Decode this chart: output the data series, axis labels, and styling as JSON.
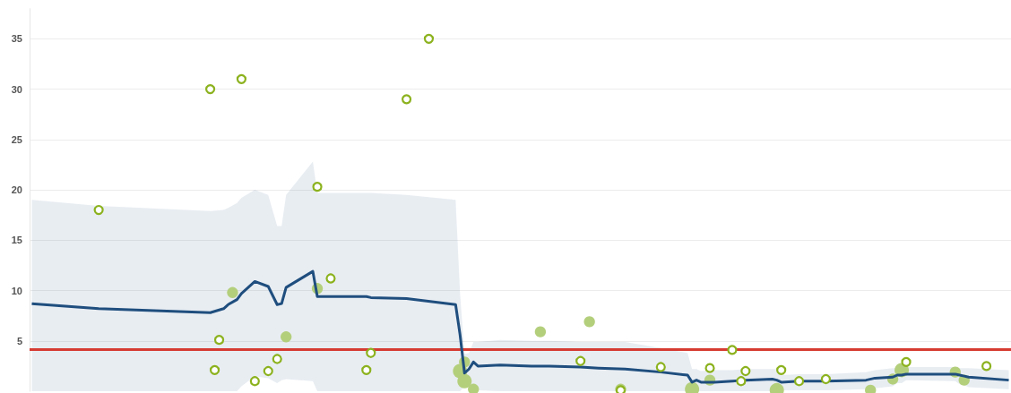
{
  "chart_data": {
    "type": "line",
    "ylim": [
      0,
      38
    ],
    "yticks": [
      5,
      10,
      15,
      20,
      25,
      30,
      35
    ],
    "grid": "y",
    "tick_labels": "y",
    "categories": [
      null,
      null,
      null,
      null,
      null,
      null,
      null,
      null,
      null,
      null,
      null,
      null,
      null,
      null,
      null,
      null,
      null,
      null,
      null,
      null,
      null,
      null,
      null,
      null,
      null,
      null,
      null,
      null,
      null,
      null,
      null,
      null,
      null,
      null,
      null,
      null,
      null,
      null,
      null,
      null,
      null,
      null,
      null,
      null,
      null,
      null,
      null,
      null,
      null,
      null,
      null,
      null,
      null,
      null,
      null,
      null,
      null,
      null,
      null,
      null,
      null,
      null,
      null,
      null,
      null,
      null,
      null,
      null,
      null,
      null,
      null,
      null,
      null,
      null,
      null,
      null,
      null,
      null,
      null,
      null,
      null,
      null,
      null,
      null,
      null,
      null,
      null,
      null,
      null,
      null,
      null,
      null,
      null,
      null,
      null,
      null,
      null,
      null,
      null,
      null,
      null,
      null,
      null,
      null,
      null,
      null,
      null,
      null,
      null,
      null,
      null,
      null,
      null,
      null,
      null,
      null,
      null,
      null,
      null,
      null,
      null,
      null,
      null,
      null,
      null,
      null,
      null,
      null,
      null,
      null,
      null,
      null,
      null,
      null,
      null,
      null,
      null,
      null,
      null,
      null,
      null,
      null,
      null,
      null,
      null,
      null,
      null,
      null,
      null,
      null,
      null,
      null,
      null,
      null,
      null,
      null,
      null,
      null,
      null,
      null,
      null,
      null,
      null,
      null,
      null,
      null,
      null,
      null,
      null,
      null,
      null,
      null,
      null,
      null,
      null,
      null,
      null,
      null,
      null,
      null,
      null,
      null,
      null,
      null,
      null,
      null,
      null,
      null,
      null,
      null,
      null,
      null,
      null,
      null,
      null,
      null,
      null,
      null,
      null,
      null,
      null,
      null,
      null,
      null,
      null,
      null,
      null,
      null,
      null,
      null,
      null,
      null,
      null,
      null,
      null,
      null,
      null,
      null,
      null,
      null
    ],
    "series": [
      {
        "color": "#1f4e7e",
        "values": [
          8.7,
          null,
          null,
          null,
          null,
          null,
          null,
          null,
          null,
          null,
          null,
          null,
          null,
          null,
          null,
          8.2,
          null,
          null,
          null,
          null,
          null,
          null,
          null,
          null,
          null,
          null,
          null,
          null,
          null,
          null,
          null,
          null,
          null,
          null,
          null,
          null,
          null,
          null,
          null,
          null,
          7.8,
          null,
          null,
          8.2,
          8.6,
          null,
          9.1,
          9.7,
          null,
          null,
          10.9,
          null,
          null,
          10.4,
          null,
          8.6,
          8.7,
          10.3,
          null,
          null,
          null,
          null,
          null,
          11.9,
          9.4,
          null,
          null,
          null,
          null,
          null,
          null,
          null,
          null,
          null,
          null,
          9.4,
          9.3,
          null,
          null,
          null,
          null,
          null,
          null,
          null,
          9.2,
          null,
          null,
          null,
          null,
          null,
          null,
          null,
          null,
          null,
          null,
          8.6,
          5.6,
          1.8,
          2.2,
          2.9,
          2.5,
          null,
          null,
          null,
          null,
          2.6,
          null,
          null,
          null,
          null,
          null,
          null,
          2.5,
          null,
          null,
          null,
          2.5,
          null,
          null,
          null,
          null,
          null,
          null,
          2.4,
          null,
          null,
          null,
          2.3,
          null,
          null,
          null,
          null,
          null,
          2.2,
          null,
          null,
          null,
          null,
          null,
          null,
          null,
          1.9,
          null,
          null,
          null,
          null,
          null,
          1.6,
          0.9,
          1.1,
          0.9,
          null,
          null,
          0.9,
          null,
          null,
          null,
          1.0,
          null,
          null,
          1.1,
          null,
          null,
          null,
          null,
          null,
          1.2,
          1.1,
          0.9,
          null,
          null,
          null,
          1.0,
          null,
          null,
          null,
          null,
          null,
          1.0,
          null,
          null,
          null,
          null,
          null,
          null,
          null,
          null,
          1.1,
          null,
          1.3,
          null,
          null,
          null,
          1.4,
          1.6,
          1.6,
          1.7,
          null,
          null,
          null,
          null,
          null,
          null,
          null,
          null,
          null,
          null,
          1.7,
          1.6,
          1.5,
          1.4,
          null,
          null,
          null,
          null,
          null,
          null,
          null,
          null,
          1.1
        ],
        "upper": [
          19.0,
          null,
          null,
          null,
          null,
          null,
          null,
          null,
          null,
          null,
          null,
          null,
          null,
          null,
          null,
          18.4,
          null,
          null,
          null,
          null,
          null,
          null,
          null,
          null,
          null,
          null,
          null,
          null,
          null,
          null,
          null,
          null,
          null,
          null,
          null,
          null,
          null,
          null,
          null,
          null,
          17.9,
          null,
          null,
          18.0,
          18.2,
          null,
          18.7,
          19.2,
          null,
          null,
          20.0,
          null,
          null,
          19.5,
          null,
          16.4,
          16.4,
          19.5,
          null,
          null,
          null,
          null,
          null,
          22.8,
          19.7,
          null,
          null,
          null,
          null,
          null,
          null,
          null,
          null,
          null,
          null,
          19.7,
          19.7,
          null,
          null,
          null,
          null,
          null,
          null,
          null,
          19.5,
          null,
          null,
          null,
          null,
          null,
          null,
          null,
          null,
          null,
          null,
          19.0,
          9.7,
          3.7,
          3.8,
          4.9,
          4.9,
          null,
          null,
          null,
          null,
          5.1,
          null,
          null,
          null,
          null,
          null,
          null,
          5.0,
          null,
          null,
          null,
          5.0,
          null,
          null,
          null,
          null,
          null,
          null,
          4.9,
          null,
          null,
          null,
          4.9,
          null,
          null,
          null,
          null,
          null,
          4.9,
          null,
          null,
          null,
          null,
          null,
          null,
          null,
          4.3,
          null,
          null,
          null,
          null,
          null,
          3.8,
          2.2,
          2.2,
          2.0,
          null,
          null,
          2.1,
          null,
          null,
          null,
          2.1,
          null,
          null,
          2.2,
          null,
          null,
          null,
          null,
          null,
          2.2,
          2.2,
          1.6,
          null,
          null,
          null,
          1.7,
          null,
          null,
          null,
          null,
          null,
          1.7,
          null,
          null,
          null,
          null,
          null,
          null,
          null,
          null,
          1.9,
          null,
          2.1,
          null,
          null,
          null,
          2.3,
          2.3,
          2.4,
          2.4,
          null,
          null,
          null,
          null,
          null,
          null,
          null,
          null,
          null,
          null,
          2.4,
          2.3,
          2.3,
          2.3,
          null,
          null,
          null,
          null,
          null,
          null,
          null,
          null,
          2.1
        ],
        "lower": [
          0,
          null,
          null,
          null,
          null,
          null,
          null,
          null,
          null,
          null,
          null,
          null,
          null,
          null,
          null,
          0,
          null,
          null,
          null,
          null,
          null,
          null,
          null,
          null,
          null,
          null,
          null,
          null,
          null,
          null,
          null,
          null,
          null,
          null,
          null,
          null,
          null,
          null,
          null,
          null,
          0,
          null,
          null,
          0,
          0,
          null,
          0,
          0.5,
          null,
          null,
          1.5,
          null,
          null,
          1.3,
          null,
          0.8,
          1.1,
          1.2,
          null,
          null,
          null,
          null,
          null,
          1.0,
          0,
          null,
          null,
          null,
          null,
          null,
          null,
          null,
          null,
          null,
          null,
          0,
          0,
          null,
          null,
          null,
          null,
          null,
          null,
          null,
          0,
          null,
          null,
          null,
          null,
          null,
          null,
          null,
          null,
          null,
          null,
          0,
          0,
          0.5,
          0.5,
          0.6,
          0.1,
          null,
          null,
          null,
          null,
          0,
          null,
          null,
          null,
          null,
          null,
          null,
          0,
          null,
          null,
          null,
          0,
          null,
          null,
          null,
          null,
          null,
          null,
          0,
          null,
          null,
          null,
          0,
          null,
          null,
          null,
          null,
          null,
          0,
          null,
          null,
          null,
          null,
          null,
          null,
          null,
          0,
          null,
          null,
          null,
          null,
          null,
          0,
          0,
          0,
          0,
          null,
          null,
          0,
          null,
          null,
          null,
          0,
          null,
          null,
          0,
          null,
          null,
          null,
          null,
          null,
          0,
          0,
          0.1,
          null,
          null,
          null,
          0.1,
          null,
          null,
          null,
          null,
          null,
          0.1,
          null,
          null,
          null,
          null,
          null,
          null,
          null,
          null,
          0.2,
          null,
          0.3,
          null,
          null,
          null,
          0.5,
          0.8,
          0.8,
          1.1,
          null,
          null,
          null,
          null,
          null,
          null,
          null,
          null,
          null,
          null,
          1.0,
          0.7,
          0.6,
          0.4,
          null,
          null,
          null,
          null,
          null,
          null,
          null,
          null,
          0.2
        ]
      },
      {
        "type": "scatter",
        "marker": "circle",
        "color": "#8cb21e",
        "values": [
          null,
          null,
          null,
          null,
          null,
          null,
          null,
          null,
          null,
          null,
          null,
          null,
          null,
          null,
          null,
          18,
          null,
          null,
          null,
          null,
          null,
          null,
          null,
          null,
          null,
          null,
          null,
          null,
          null,
          null,
          null,
          null,
          null,
          null,
          null,
          null,
          null,
          null,
          null,
          null,
          30,
          2.1,
          5.1,
          null,
          null,
          null,
          null,
          31,
          null,
          null,
          1.0,
          null,
          null,
          2.0,
          null,
          3.2,
          null,
          null,
          null,
          null,
          null,
          null,
          null,
          null,
          20.3,
          null,
          null,
          11.2,
          null,
          null,
          null,
          null,
          null,
          null,
          null,
          2.1,
          3.8,
          null,
          null,
          null,
          null,
          null,
          null,
          null,
          29,
          null,
          null,
          null,
          null,
          35,
          null,
          null,
          null,
          null,
          null,
          null,
          null,
          null,
          null,
          null,
          null,
          null,
          null,
          null,
          null,
          null,
          null,
          null,
          null,
          null,
          null,
          null,
          null,
          null,
          null,
          null,
          null,
          null,
          null,
          null,
          null,
          null,
          null,
          3.0,
          null,
          null,
          null,
          null,
          null,
          null,
          null,
          null,
          0.1,
          null,
          null,
          null,
          null,
          null,
          null,
          null,
          null,
          2.4,
          null,
          null,
          null,
          null,
          null,
          null,
          null,
          null,
          null,
          null,
          2.3,
          null,
          null,
          null,
          null,
          4.1,
          null,
          1.0,
          2.0,
          null,
          null,
          null,
          null,
          null,
          null,
          null,
          2.1,
          null,
          null,
          null,
          1.0,
          null,
          null,
          null,
          null,
          null,
          1.2,
          null,
          null,
          null,
          null,
          null,
          null,
          null,
          null,
          null,
          null,
          null,
          null,
          null,
          null,
          null,
          null,
          null,
          2.9,
          null,
          null,
          null,
          null,
          null,
          null,
          null,
          null,
          null,
          null,
          null,
          null,
          null,
          null,
          null,
          null,
          null,
          2.5,
          null,
          null,
          null,
          null,
          null
        ]
      },
      {
        "type": "bubble",
        "color": "#b4cf7c",
        "values": [
          null,
          null,
          null,
          null,
          null,
          null,
          null,
          null,
          null,
          null,
          null,
          null,
          null,
          null,
          null,
          null,
          null,
          null,
          null,
          null,
          null,
          null,
          null,
          null,
          null,
          null,
          null,
          null,
          null,
          null,
          null,
          null,
          null,
          null,
          null,
          null,
          null,
          null,
          null,
          null,
          null,
          null,
          null,
          null,
          null,
          9.8,
          null,
          null,
          null,
          null,
          null,
          null,
          null,
          null,
          null,
          null,
          null,
          5.4,
          null,
          null,
          null,
          null,
          null,
          null,
          10.2,
          null,
          null,
          null,
          null,
          null,
          null,
          null,
          null,
          null,
          null,
          null,
          null,
          null,
          null,
          null,
          null,
          null,
          null,
          null,
          null,
          null,
          null,
          null,
          null,
          null,
          null,
          null,
          null,
          null,
          null,
          null,
          2.0,
          2.9,
          null,
          0.2,
          null,
          null,
          null,
          null,
          null,
          null,
          null,
          null,
          null,
          null,
          null,
          null,
          null,
          null,
          5.9,
          null,
          null,
          null,
          null,
          null,
          null,
          null,
          null,
          null,
          null,
          6.9,
          null,
          null,
          null,
          null,
          null,
          null,
          0.2,
          null,
          null,
          null,
          null,
          null,
          null,
          null,
          null,
          null,
          null,
          null,
          null,
          null,
          null,
          null,
          0.2,
          null,
          null,
          null,
          1.1,
          null,
          null,
          null,
          null,
          null,
          null,
          null,
          null,
          null,
          null,
          null,
          null,
          null,
          null,
          0.1,
          null,
          null,
          null,
          null,
          null,
          null,
          null,
          null,
          null,
          null,
          null,
          null,
          null,
          null,
          null,
          null,
          null,
          null,
          null,
          null,
          0.1,
          null,
          null,
          null,
          null,
          1.2,
          null,
          2.1,
          null,
          null,
          null,
          null,
          null,
          null,
          null,
          null,
          null,
          null,
          null,
          1.9,
          null,
          1.1,
          null,
          null,
          null,
          null,
          null,
          null,
          null,
          null,
          null,
          null
        ],
        "sizes": [
          null,
          null,
          null,
          null,
          null,
          null,
          null,
          null,
          null,
          null,
          null,
          null,
          null,
          null,
          null,
          null,
          null,
          null,
          null,
          null,
          null,
          null,
          null,
          null,
          null,
          null,
          null,
          null,
          null,
          null,
          null,
          null,
          null,
          null,
          null,
          null,
          null,
          null,
          null,
          null,
          null,
          null,
          null,
          null,
          null,
          0.6,
          null,
          null,
          null,
          null,
          null,
          null,
          null,
          null,
          null,
          null,
          null,
          0.6,
          null,
          null,
          null,
          null,
          null,
          null,
          0.6,
          null,
          null,
          null,
          null,
          null,
          null,
          null,
          null,
          null,
          null,
          null,
          null,
          null,
          null,
          null,
          null,
          null,
          null,
          null,
          null,
          null,
          null,
          null,
          null,
          null,
          null,
          null,
          null,
          null,
          null,
          null,
          1,
          0.6,
          null,
          0.6,
          null,
          null,
          null,
          null,
          null,
          null,
          null,
          null,
          null,
          null,
          null,
          null,
          null,
          null,
          0.6,
          null,
          null,
          null,
          null,
          null,
          null,
          null,
          null,
          null,
          null,
          0.6,
          null,
          null,
          null,
          null,
          null,
          null,
          0.6,
          null,
          null,
          null,
          null,
          null,
          null,
          null,
          null,
          null,
          null,
          null,
          null,
          null,
          null,
          null,
          1,
          null,
          null,
          null,
          0.6,
          null,
          null,
          null,
          null,
          null,
          null,
          null,
          null,
          null,
          null,
          null,
          null,
          null,
          null,
          1,
          null,
          null,
          null,
          null,
          null,
          null,
          null,
          null,
          null,
          null,
          null,
          null,
          null,
          null,
          null,
          null,
          null,
          null,
          null,
          null,
          0.6,
          null,
          null,
          null,
          null,
          0.6,
          null,
          1,
          null,
          null,
          null,
          null,
          null,
          null,
          null,
          null,
          null,
          null,
          null,
          0.6,
          null,
          0.6,
          null,
          null,
          null,
          null,
          null,
          null,
          null,
          null,
          null,
          null
        ]
      },
      {
        "type": "bubble",
        "color": "#b4cf7c",
        "values": [
          null,
          null,
          null,
          null,
          null,
          null,
          null,
          null,
          null,
          null,
          null,
          null,
          null,
          null,
          null,
          null,
          null,
          null,
          null,
          null,
          null,
          null,
          null,
          null,
          null,
          null,
          null,
          null,
          null,
          null,
          null,
          null,
          null,
          null,
          null,
          null,
          null,
          null,
          null,
          null,
          null,
          null,
          null,
          null,
          null,
          null,
          null,
          null,
          null,
          null,
          null,
          null,
          null,
          null,
          null,
          null,
          null,
          null,
          null,
          null,
          null,
          null,
          null,
          null,
          null,
          null,
          null,
          null,
          null,
          null,
          null,
          null,
          null,
          null,
          null,
          null,
          null,
          null,
          null,
          null,
          null,
          null,
          null,
          null,
          null,
          null,
          null,
          null,
          null,
          null,
          null,
          null,
          null,
          null,
          null,
          null,
          null,
          1.0,
          null,
          null,
          null,
          null,
          null,
          null,
          null,
          null,
          null,
          null,
          null,
          null,
          null,
          null,
          null,
          null,
          null,
          null,
          null,
          null,
          null,
          null,
          null,
          null,
          null,
          null,
          null,
          null,
          null,
          null,
          null,
          null,
          null,
          null,
          null,
          null,
          null,
          null,
          null,
          null,
          null,
          null,
          null,
          null,
          null,
          null,
          null,
          null,
          null,
          null,
          null,
          null,
          null,
          null,
          null,
          null,
          null,
          null,
          null,
          null,
          null,
          null,
          null,
          null,
          null,
          null,
          null,
          null,
          null,
          null,
          null,
          null,
          null,
          null,
          null,
          null,
          null,
          null,
          null,
          null,
          null,
          null,
          null,
          null,
          null,
          null,
          null,
          null,
          null,
          null,
          null,
          null,
          null,
          null,
          null,
          null,
          null,
          null,
          null,
          null,
          null,
          null,
          null,
          null,
          null,
          null,
          null,
          null,
          null,
          null,
          null,
          null,
          null,
          null,
          null,
          null,
          null,
          null,
          null,
          null,
          null,
          null
        ],
        "sizes": [
          null,
          null,
          null,
          null,
          null,
          null,
          null,
          null,
          null,
          null,
          null,
          null,
          null,
          null,
          null,
          null,
          null,
          null,
          null,
          null,
          null,
          null,
          null,
          null,
          null,
          null,
          null,
          null,
          null,
          null,
          null,
          null,
          null,
          null,
          null,
          null,
          null,
          null,
          null,
          null,
          null,
          null,
          null,
          null,
          null,
          null,
          null,
          null,
          null,
          null,
          null,
          null,
          null,
          null,
          null,
          null,
          null,
          null,
          null,
          null,
          null,
          null,
          null,
          null,
          null,
          null,
          null,
          null,
          null,
          null,
          null,
          null,
          null,
          null,
          null,
          null,
          null,
          null,
          null,
          null,
          null,
          null,
          null,
          null,
          null,
          null,
          null,
          null,
          null,
          null,
          null,
          null,
          null,
          null,
          null,
          null,
          null,
          1,
          null,
          null,
          null,
          null,
          null,
          null,
          null,
          null,
          null,
          null,
          null,
          null,
          null,
          null,
          null,
          null,
          null,
          null,
          null,
          null,
          null,
          null,
          null,
          null,
          null,
          null,
          null,
          null,
          null,
          null,
          null,
          null,
          null,
          null,
          null,
          null,
          null,
          null,
          null,
          null,
          null,
          null,
          null,
          null,
          null,
          null,
          null,
          null,
          null,
          null,
          null,
          null,
          null,
          null,
          null,
          null,
          null,
          null,
          null,
          null,
          null,
          null,
          null,
          null,
          null,
          null,
          null,
          null,
          null,
          null,
          null,
          null,
          null,
          null,
          null,
          null,
          null,
          null,
          null,
          null,
          null,
          null,
          null,
          null,
          null,
          null,
          null,
          null,
          null,
          null,
          null,
          null,
          null,
          null,
          null,
          null,
          null,
          null,
          null,
          null,
          null,
          null,
          null,
          null,
          null,
          null,
          null,
          null,
          null,
          null,
          null,
          null,
          null,
          null,
          null,
          null,
          null,
          null,
          null,
          null,
          null,
          null
        ]
      }
    ],
    "ref_lines": [
      {
        "axis": "y",
        "value": 4.2,
        "color": "#d63c32"
      }
    ]
  }
}
